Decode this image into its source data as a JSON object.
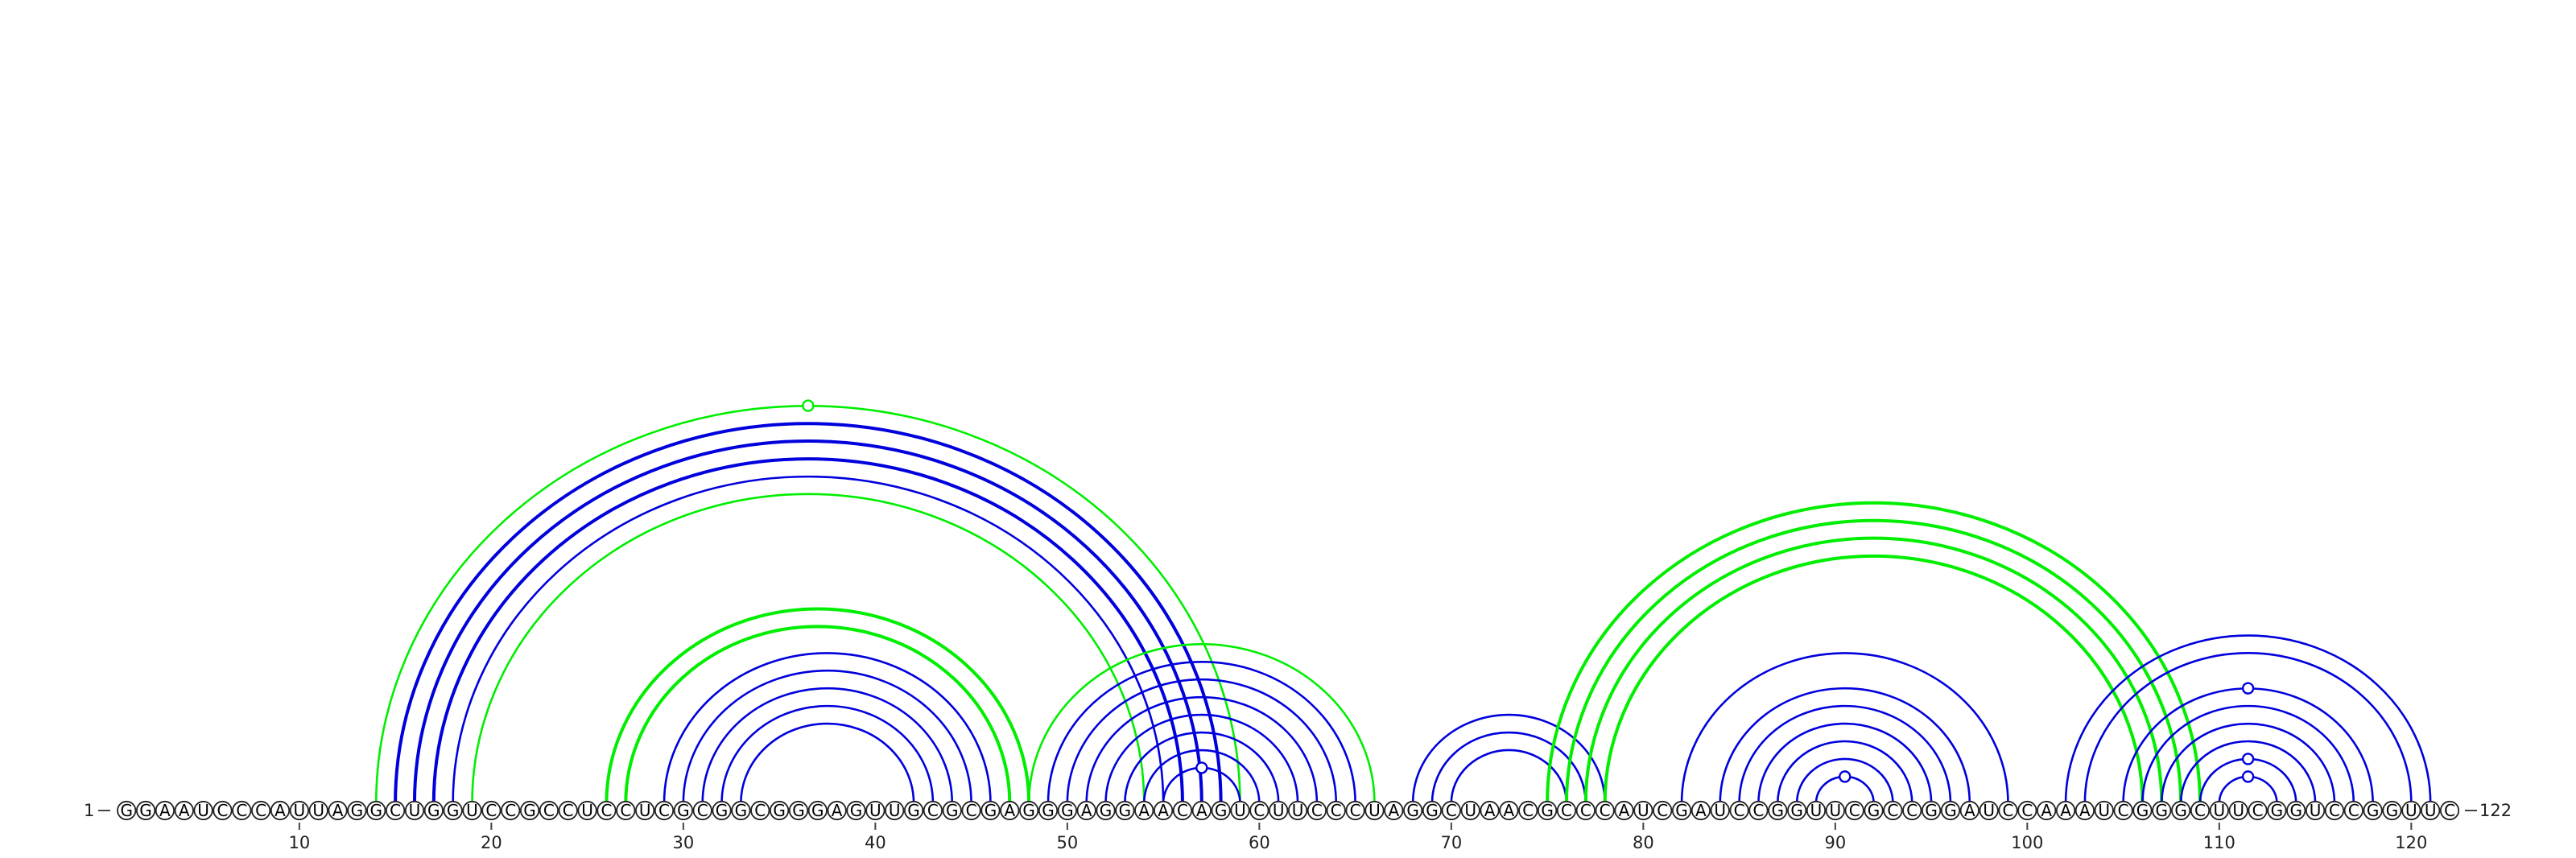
{
  "sequence": "GGAAUCCCAUUAGGCUGGUCCGCCUCCUCGCGGCGGGAGUUGCGCGAGGGAGGAACAGUCUUCCCUAGGCUAACGCCCAUCGAUCCGGUUCGCCGGAUCCAAAUCGGGCUUCGGUCCGGUUC",
  "length": 122,
  "start_label": "1",
  "end_label": "122",
  "ticks": [
    {
      "pos": 10,
      "label": "10"
    },
    {
      "pos": 20,
      "label": "20"
    },
    {
      "pos": 30,
      "label": "30"
    },
    {
      "pos": 40,
      "label": "40"
    },
    {
      "pos": 50,
      "label": "50"
    },
    {
      "pos": 60,
      "label": "60"
    },
    {
      "pos": 70,
      "label": "70"
    },
    {
      "pos": 80,
      "label": "80"
    },
    {
      "pos": 90,
      "label": "90"
    },
    {
      "pos": 100,
      "label": "100"
    },
    {
      "pos": 110,
      "label": "110"
    },
    {
      "pos": 120,
      "label": "120"
    }
  ],
  "colors": {
    "backbone": "#444444",
    "blue_arc": "#0000dd",
    "green_arc": "#00ee00",
    "base_fill": "#ffffff",
    "base_stroke": "#222222"
  },
  "arcs": [
    {
      "i": 14,
      "j": 59,
      "color": "green",
      "weight": "normal",
      "marker": true
    },
    {
      "i": 15,
      "j": 58,
      "color": "blue",
      "weight": "bold"
    },
    {
      "i": 16,
      "j": 57,
      "color": "blue",
      "weight": "bold"
    },
    {
      "i": 17,
      "j": 56,
      "color": "blue",
      "weight": "bold"
    },
    {
      "i": 18,
      "j": 55,
      "color": "blue",
      "weight": "normal"
    },
    {
      "i": 19,
      "j": 54,
      "color": "green",
      "weight": "normal"
    },
    {
      "i": 26,
      "j": 48,
      "color": "green",
      "weight": "bold"
    },
    {
      "i": 27,
      "j": 47,
      "color": "green",
      "weight": "bold"
    },
    {
      "i": 29,
      "j": 46,
      "color": "blue",
      "weight": "normal"
    },
    {
      "i": 30,
      "j": 45,
      "color": "blue",
      "weight": "normal"
    },
    {
      "i": 31,
      "j": 44,
      "color": "blue",
      "weight": "normal"
    },
    {
      "i": 32,
      "j": 43,
      "color": "blue",
      "weight": "normal"
    },
    {
      "i": 33,
      "j": 42,
      "color": "blue",
      "weight": "normal"
    },
    {
      "i": 48,
      "j": 66,
      "color": "green",
      "weight": "normal"
    },
    {
      "i": 49,
      "j": 65,
      "color": "blue",
      "weight": "normal"
    },
    {
      "i": 50,
      "j": 64,
      "color": "blue",
      "weight": "normal"
    },
    {
      "i": 51,
      "j": 63,
      "color": "blue",
      "weight": "normal"
    },
    {
      "i": 52,
      "j": 62,
      "color": "blue",
      "weight": "normal"
    },
    {
      "i": 53,
      "j": 61,
      "color": "blue",
      "weight": "normal"
    },
    {
      "i": 54,
      "j": 60,
      "color": "blue",
      "weight": "normal"
    },
    {
      "i": 55,
      "j": 59,
      "color": "blue",
      "weight": "normal",
      "marker": true
    },
    {
      "i": 68,
      "j": 78,
      "color": "blue",
      "weight": "normal"
    },
    {
      "i": 69,
      "j": 77,
      "color": "blue",
      "weight": "normal"
    },
    {
      "i": 70,
      "j": 76,
      "color": "blue",
      "weight": "normal"
    },
    {
      "i": 75,
      "j": 109,
      "color": "green",
      "weight": "bold"
    },
    {
      "i": 76,
      "j": 108,
      "color": "green",
      "weight": "bold"
    },
    {
      "i": 77,
      "j": 107,
      "color": "green",
      "weight": "bold"
    },
    {
      "i": 78,
      "j": 106,
      "color": "green",
      "weight": "bold"
    },
    {
      "i": 82,
      "j": 99,
      "color": "blue",
      "weight": "normal"
    },
    {
      "i": 84,
      "j": 97,
      "color": "blue",
      "weight": "normal"
    },
    {
      "i": 85,
      "j": 96,
      "color": "blue",
      "weight": "normal"
    },
    {
      "i": 86,
      "j": 95,
      "color": "blue",
      "weight": "normal"
    },
    {
      "i": 87,
      "j": 94,
      "color": "blue",
      "weight": "normal"
    },
    {
      "i": 88,
      "j": 93,
      "color": "blue",
      "weight": "normal"
    },
    {
      "i": 89,
      "j": 92,
      "color": "blue",
      "weight": "normal",
      "marker": true
    },
    {
      "i": 102,
      "j": 121,
      "color": "blue",
      "weight": "normal"
    },
    {
      "i": 103,
      "j": 120,
      "color": "blue",
      "weight": "normal"
    },
    {
      "i": 105,
      "j": 118,
      "color": "blue",
      "weight": "normal",
      "marker": true
    },
    {
      "i": 106,
      "j": 117,
      "color": "blue",
      "weight": "normal"
    },
    {
      "i": 107,
      "j": 116,
      "color": "blue",
      "weight": "normal"
    },
    {
      "i": 108,
      "j": 115,
      "color": "blue",
      "weight": "normal"
    },
    {
      "i": 109,
      "j": 114,
      "color": "blue",
      "weight": "normal",
      "marker": true
    },
    {
      "i": 110,
      "j": 113,
      "color": "blue",
      "weight": "normal",
      "marker": true
    }
  ]
}
